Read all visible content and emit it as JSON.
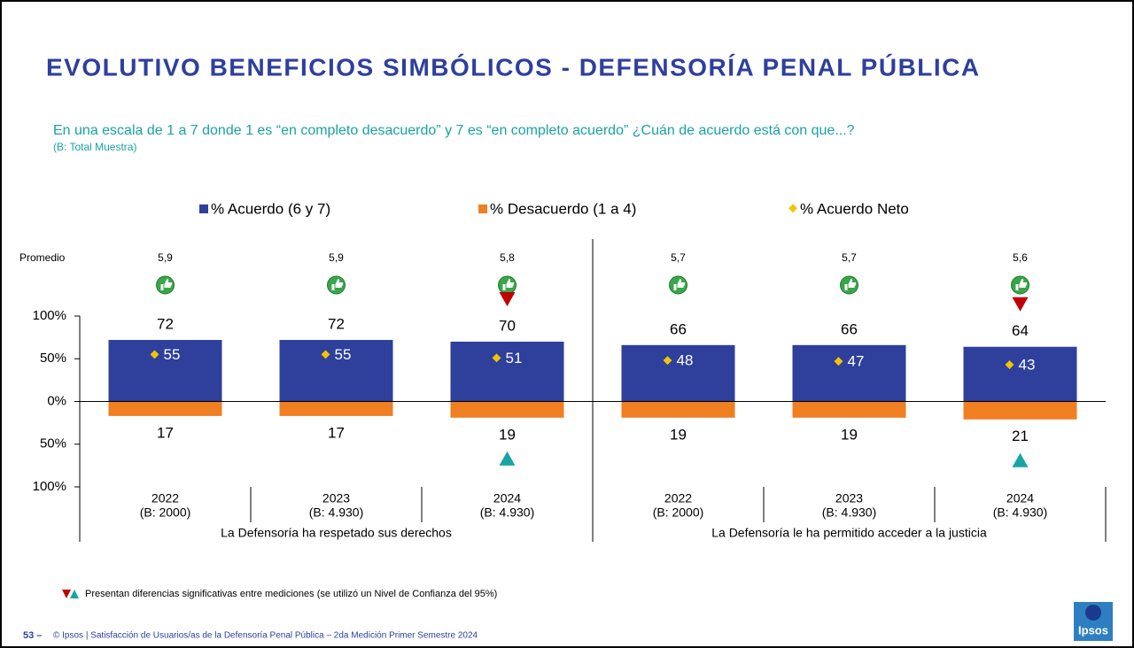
{
  "chart_data": {
    "type": "diverging_bar",
    "title": "EVOLUTIVO BENEFICIOS SIMBÓLICOS -  DEFENSORÍA PENAL PÚBLICA",
    "subtitle": "En una escala de 1 a 7 donde 1 es “en completo desacuerdo” y 7 es “en completo acuerdo” ¿Cuán de acuerdo está con que...?",
    "base_note": "(B: Total Muestra)",
    "categories": [
      "2022",
      "2023",
      "2024",
      "2022",
      "2023",
      "2024"
    ],
    "bases": [
      "(B: 2000)",
      "(B: 4.930)",
      "(B: 4.930)",
      "(B: 2000)",
      "(B: 4.930)",
      "(B: 4.930)"
    ],
    "groups": [
      "La Defensoría ha respetado sus derechos",
      "La Defensoría le ha permitido acceder a la justicia"
    ],
    "group_size": 3,
    "series": [
      {
        "name": "% Acuerdo (6 y 7)",
        "color": "#2e3f9c",
        "values": [
          72,
          72,
          70,
          66,
          66,
          64
        ]
      },
      {
        "name": "% Desacuerdo (1 a 4)",
        "color": "#f07f22",
        "values": [
          17,
          17,
          19,
          19,
          19,
          21
        ],
        "direction": "down"
      },
      {
        "name": "% Acuerdo Neto",
        "color": "#f2c500",
        "marker": "diamond",
        "values": [
          55,
          55,
          51,
          48,
          47,
          43
        ]
      }
    ],
    "promedio_label": "Promedio",
    "promedio": {
      "values": [
        5.9,
        5.9,
        5.8,
        5.7,
        5.7,
        5.6
      ],
      "value_labels": [
        "5,9",
        "5,9",
        "5,8",
        "5,7",
        "5,7",
        "5,6"
      ]
    },
    "significant_down": [
      false,
      false,
      true,
      false,
      false,
      true
    ],
    "significant_up": [
      false,
      false,
      true,
      false,
      false,
      true
    ],
    "ylim": [
      -100,
      100
    ],
    "yticks": [
      {
        "value": 100,
        "label": "100%"
      },
      {
        "value": 50,
        "label": "50%"
      },
      {
        "value": 0,
        "label": "0%"
      },
      {
        "value": -50,
        "label": "50%"
      },
      {
        "value": -100,
        "label": "100%"
      }
    ],
    "footnote": "Presentan diferencias significativas entre mediciones (se utilizó un Nivel de Confianza del 95%)",
    "page_number": "53 –",
    "footer": "© Ipsos | Satisfacción de Usuarios/as de la Defensoría Penal Pública – 2da Medición Primer Semestre 2024",
    "logo": "Ipsos"
  }
}
